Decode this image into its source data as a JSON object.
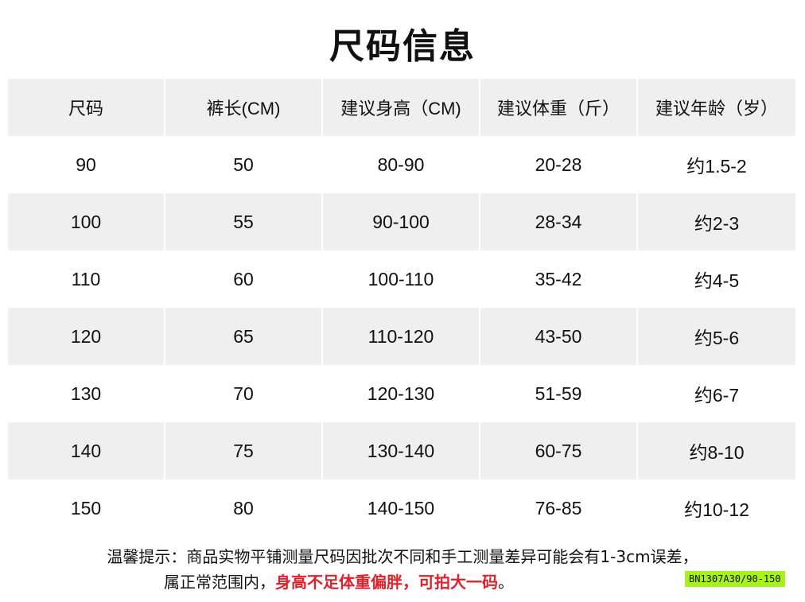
{
  "title": "尺码信息",
  "table": {
    "headers": [
      "尺码",
      "裤长(CM)",
      "建议身高（CM)",
      "建议体重（斤）",
      "建议年龄（岁）"
    ],
    "rows": [
      [
        "90",
        "50",
        "80-90",
        "20-28",
        "约1.5-2"
      ],
      [
        "100",
        "55",
        "90-100",
        "28-34",
        "约2-3"
      ],
      [
        "110",
        "60",
        "100-110",
        "35-42",
        "约4-5"
      ],
      [
        "120",
        "65",
        "110-120",
        "43-50",
        "约5-6"
      ],
      [
        "130",
        "70",
        "120-130",
        "51-59",
        "约6-7"
      ],
      [
        "140",
        "75",
        "130-140",
        "60-75",
        "约8-10"
      ],
      [
        "150",
        "80",
        "140-150",
        "76-85",
        "约10-12"
      ]
    ]
  },
  "note": {
    "line1": "温馨提示：商品实物平铺测量尺码因批次不同和手工测量差异可能会有1-3cm误差，",
    "line2_plain": "属正常范围内，",
    "line2_red": "身高不足体重偏胖，可拍大一码",
    "line2_end": "。"
  },
  "badge": "BN1307A30/90-150",
  "colors": {
    "header_bg": "#efefef",
    "highlight_red": "#e0202a",
    "badge_bg": "#a6f21b"
  }
}
